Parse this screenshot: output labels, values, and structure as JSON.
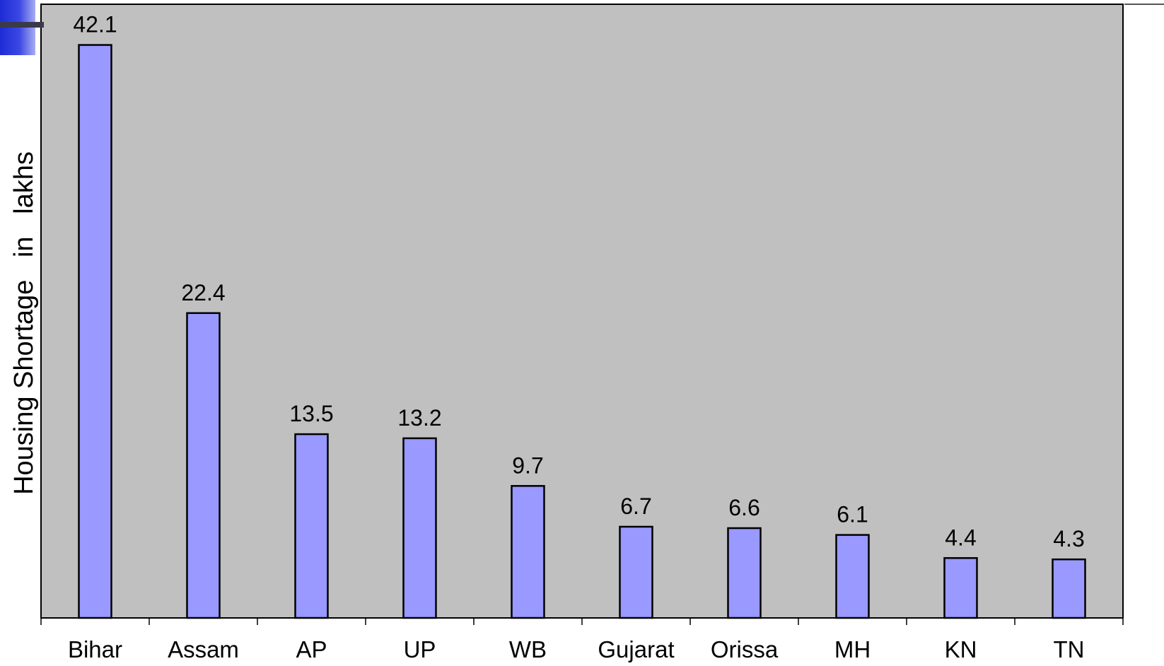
{
  "chart_data": {
    "type": "bar",
    "categories": [
      "Bihar",
      "Assam",
      "AP",
      "UP",
      "WB",
      "Gujarat",
      "Orissa",
      "MH",
      "KN",
      "TN"
    ],
    "values": [
      42.1,
      22.4,
      13.5,
      13.2,
      9.7,
      6.7,
      6.6,
      6.1,
      4.4,
      4.3
    ],
    "data_labels": [
      "42.1",
      "22.4",
      "13.5",
      "13.2",
      "9.7",
      "6.7",
      "6.6",
      "6.1",
      "4.4",
      "4.3"
    ],
    "title": "",
    "xlabel": "",
    "ylabel": "Housing Shortage   in   lakhs",
    "ylim": [
      0,
      45
    ],
    "grid": false,
    "legend": "none",
    "colors": {
      "bar_fill": "#9999ff",
      "bar_stroke": "#000000",
      "plot_background": "#c0c0c0",
      "page_background": "#ffffff",
      "text": "#000000"
    }
  }
}
